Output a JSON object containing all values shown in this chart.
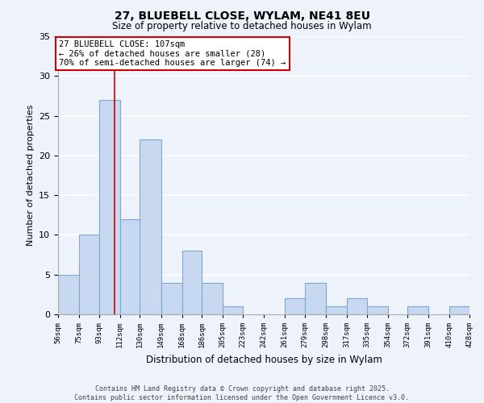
{
  "title": "27, BLUEBELL CLOSE, WYLAM, NE41 8EU",
  "subtitle": "Size of property relative to detached houses in Wylam",
  "xlabel": "Distribution of detached houses by size in Wylam",
  "ylabel": "Number of detached properties",
  "bar_color": "#c8d8f0",
  "bar_edge_color": "#7aaad0",
  "background_color": "#eef2fb",
  "grid_color": "#ffffff",
  "bin_edges": [
    56,
    75,
    93,
    112,
    130,
    149,
    168,
    186,
    205,
    223,
    242,
    261,
    279,
    298,
    317,
    335,
    354,
    372,
    391,
    410,
    428
  ],
  "counts": [
    5,
    10,
    27,
    12,
    22,
    4,
    8,
    4,
    1,
    0,
    0,
    2,
    4,
    1,
    2,
    1,
    0,
    1,
    0,
    1
  ],
  "tick_labels": [
    "56sqm",
    "75sqm",
    "93sqm",
    "112sqm",
    "130sqm",
    "149sqm",
    "168sqm",
    "186sqm",
    "205sqm",
    "223sqm",
    "242sqm",
    "261sqm",
    "279sqm",
    "298sqm",
    "317sqm",
    "335sqm",
    "354sqm",
    "372sqm",
    "391sqm",
    "410sqm",
    "428sqm"
  ],
  "property_line_x": 107,
  "annotation_title": "27 BLUEBELL CLOSE: 107sqm",
  "annotation_line1": "← 26% of detached houses are smaller (28)",
  "annotation_line2": "70% of semi-detached houses are larger (74) →",
  "annotation_box_color": "#ffffff",
  "annotation_box_edge": "#cc0000",
  "property_line_color": "#cc0000",
  "ylim": [
    0,
    35
  ],
  "yticks": [
    0,
    5,
    10,
    15,
    20,
    25,
    30,
    35
  ],
  "footer_line1": "Contains HM Land Registry data © Crown copyright and database right 2025.",
  "footer_line2": "Contains public sector information licensed under the Open Government Licence v3.0."
}
